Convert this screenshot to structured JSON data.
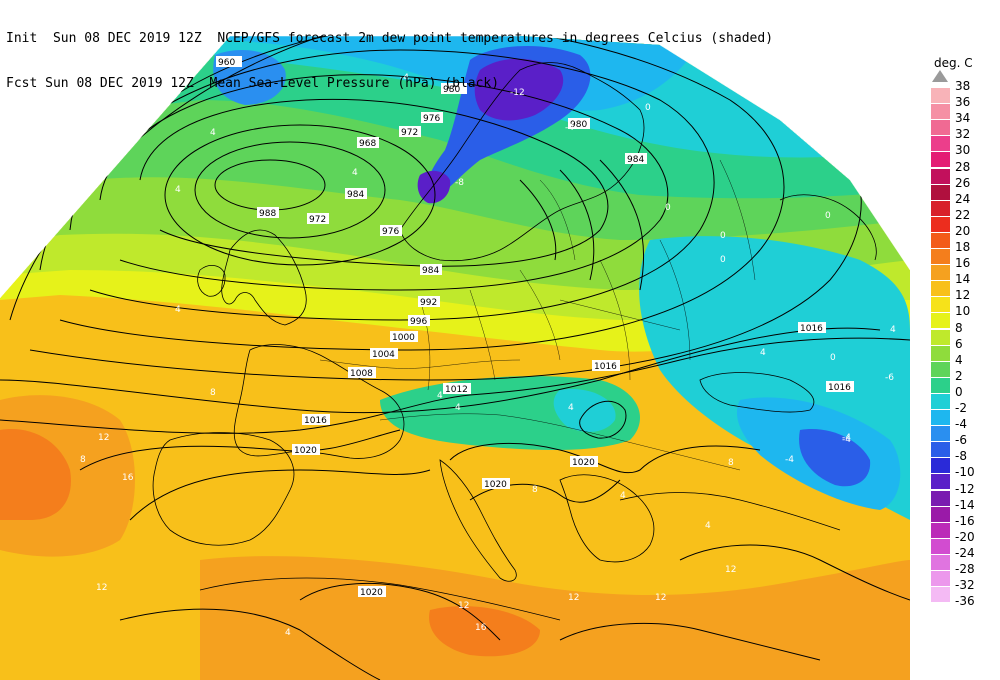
{
  "header": {
    "line1_left": "Init  Sun 08 DEC 2019 12Z",
    "line1_right": "NCEP/GFS forecast 2m dew point temperatures in degrees Celcius (shaded)",
    "line2_left": "Fcst Sun 08 DEC 2019 12Z",
    "line2_right": "Mean Sea-Level Pressure (hPa) (black)"
  },
  "legend": {
    "unit": "deg. C",
    "levels": [
      {
        "label": "38",
        "color": "#ffffff"
      },
      {
        "label": "36",
        "color": "#f8b3b8"
      },
      {
        "label": "34",
        "color": "#f590a4"
      },
      {
        "label": "32",
        "color": "#f06a93"
      },
      {
        "label": "30",
        "color": "#ec3e8b"
      },
      {
        "label": "28",
        "color": "#e41c74"
      },
      {
        "label": "26",
        "color": "#c2105c"
      },
      {
        "label": "24",
        "color": "#b0103e"
      },
      {
        "label": "22",
        "color": "#d8202a"
      },
      {
        "label": "20",
        "color": "#ec2d1e"
      },
      {
        "label": "18",
        "color": "#f35b19"
      },
      {
        "label": "16",
        "color": "#f47e1c"
      },
      {
        "label": "14",
        "color": "#f5a11f"
      },
      {
        "label": "12",
        "color": "#f8c01a"
      },
      {
        "label": "10",
        "color": "#f6e21a"
      },
      {
        "label": "8",
        "color": "#e6f21a"
      },
      {
        "label": "6",
        "color": "#bfe92c"
      },
      {
        "label": "4",
        "color": "#8fdc3c"
      },
      {
        "label": "2",
        "color": "#5ed45a"
      },
      {
        "label": "0",
        "color": "#2cd08a"
      },
      {
        "label": "-2",
        "color": "#1fcfd6"
      },
      {
        "label": "-4",
        "color": "#1eb7ef"
      },
      {
        "label": "-6",
        "color": "#2a8ff0"
      },
      {
        "label": "-8",
        "color": "#2a5ee8"
      },
      {
        "label": "-10",
        "color": "#2a2ad8"
      },
      {
        "label": "-12",
        "color": "#5a1fc8"
      },
      {
        "label": "-14",
        "color": "#7a1bb0"
      },
      {
        "label": "-16",
        "color": "#9a1aa8"
      },
      {
        "label": "-20",
        "color": "#bb2ab8"
      },
      {
        "label": "-24",
        "color": "#d24cd0"
      },
      {
        "label": "-28",
        "color": "#e074e0"
      },
      {
        "label": "-32",
        "color": "#ec98ec"
      },
      {
        "label": "-36",
        "color": "#f4baf4"
      }
    ]
  },
  "map": {
    "isobar_labels": [
      "960",
      "976",
      "980",
      "972",
      "968",
      "984",
      "988",
      "972",
      "976",
      "980",
      "984",
      "984",
      "992",
      "996",
      "1000",
      "1004",
      "1008",
      "1012",
      "1016",
      "1016",
      "1016",
      "1016",
      "1020",
      "1020",
      "1020",
      "1020"
    ],
    "dewpoint_labels": [
      "-12",
      "-4",
      "-4",
      "0",
      "-8",
      "0",
      "4",
      "4",
      "4",
      "0",
      "0",
      "0",
      "4",
      "-6",
      "-4",
      "-4",
      "0",
      "4",
      "4",
      "8",
      "8",
      "12",
      "16",
      "12",
      "12",
      "12",
      "8",
      "4",
      "4",
      "4",
      "16",
      "12",
      "4",
      "-4",
      "4",
      "4",
      "8",
      "12"
    ]
  }
}
